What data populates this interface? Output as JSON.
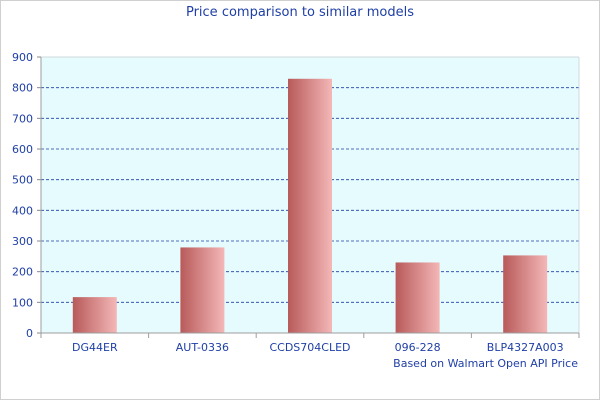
{
  "chart_data": {
    "type": "bar",
    "title": "Price comparison to similar models",
    "caption": "Based on Walmart Open API Price",
    "categories": [
      "DG44ER",
      "AUT-0336",
      "CCDS704CLED",
      "096-228",
      "BLP4327A003"
    ],
    "values": [
      117,
      279,
      829,
      230,
      253
    ],
    "ylim": [
      0,
      900
    ],
    "yticks": [
      0,
      100,
      200,
      300,
      400,
      500,
      600,
      700,
      800,
      900
    ],
    "xlabel": "",
    "ylabel": "",
    "grid": true,
    "legend": "none"
  },
  "colors": {
    "plot_background": "#e6fbfe",
    "grid": "#1f3fa6",
    "text": "#1f3fa6",
    "bar_dark": "#b85a5a",
    "bar_light": "#f4b7b7"
  }
}
